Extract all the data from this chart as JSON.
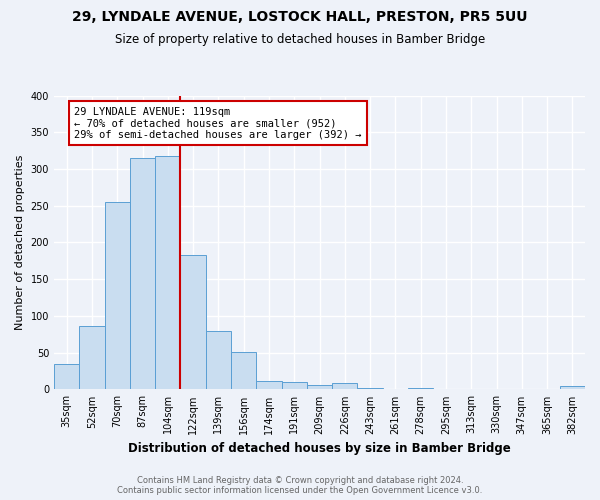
{
  "title": "29, LYNDALE AVENUE, LOSTOCK HALL, PRESTON, PR5 5UU",
  "subtitle": "Size of property relative to detached houses in Bamber Bridge",
  "xlabel": "Distribution of detached houses by size in Bamber Bridge",
  "ylabel": "Number of detached properties",
  "bar_labels": [
    "35sqm",
    "52sqm",
    "70sqm",
    "87sqm",
    "104sqm",
    "122sqm",
    "139sqm",
    "156sqm",
    "174sqm",
    "191sqm",
    "209sqm",
    "226sqm",
    "243sqm",
    "261sqm",
    "278sqm",
    "295sqm",
    "313sqm",
    "330sqm",
    "347sqm",
    "365sqm",
    "382sqm"
  ],
  "bar_values": [
    35,
    87,
    255,
    315,
    317,
    183,
    79,
    51,
    12,
    10,
    6,
    9,
    2,
    0,
    2,
    0,
    0,
    0,
    0,
    0,
    4
  ],
  "bar_color": "#c9ddf0",
  "bar_edge_color": "#5a9fd4",
  "vline_index": 5,
  "annotation_line1": "29 LYNDALE AVENUE: 119sqm",
  "annotation_line2": "← 70% of detached houses are smaller (952)",
  "annotation_line3": "29% of semi-detached houses are larger (392) →",
  "annotation_box_color": "#ffffff",
  "annotation_box_edge_color": "#cc0000",
  "vline_color": "#cc0000",
  "ylim": [
    0,
    400
  ],
  "yticks": [
    0,
    50,
    100,
    150,
    200,
    250,
    300,
    350,
    400
  ],
  "footer_line1": "Contains HM Land Registry data © Crown copyright and database right 2024.",
  "footer_line2": "Contains public sector information licensed under the Open Government Licence v3.0.",
  "background_color": "#eef2f9",
  "grid_color": "#ffffff",
  "title_fontsize": 10,
  "subtitle_fontsize": 8.5,
  "xlabel_fontsize": 8.5,
  "ylabel_fontsize": 8,
  "tick_fontsize": 7,
  "annotation_fontsize": 7.5,
  "footer_fontsize": 6
}
